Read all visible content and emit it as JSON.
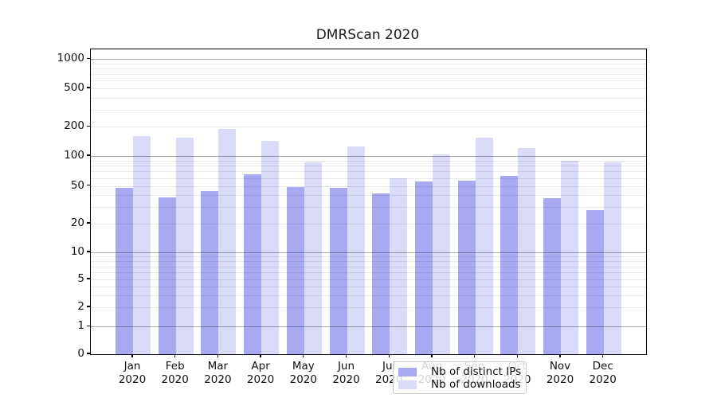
{
  "title": "DMRScan 2020",
  "chart_data": {
    "type": "bar",
    "title": "DMRScan 2020",
    "yscale": "symlog",
    "ylim": [
      0,
      1260
    ],
    "y_ticks": [
      0,
      1,
      2,
      5,
      10,
      20,
      50,
      100,
      200,
      500,
      1000
    ],
    "grid": true,
    "grid_minor": true,
    "legend_position": "lower-center",
    "categories": [
      {
        "month": "Jan",
        "year": "2020"
      },
      {
        "month": "Feb",
        "year": "2020"
      },
      {
        "month": "Mar",
        "year": "2020"
      },
      {
        "month": "Apr",
        "year": "2020"
      },
      {
        "month": "May",
        "year": "2020"
      },
      {
        "month": "Jun",
        "year": "2020"
      },
      {
        "month": "Jul",
        "year": "2020"
      },
      {
        "month": "Aug",
        "year": "2020"
      },
      {
        "month": "Sep",
        "year": "2020"
      },
      {
        "month": "Oct",
        "year": "2020"
      },
      {
        "month": "Nov",
        "year": "2020"
      },
      {
        "month": "Dec",
        "year": "2020"
      }
    ],
    "series": [
      {
        "name": "Nb of distinct IPs",
        "color": "#a9a9f2",
        "values": [
          48,
          38,
          44,
          65,
          49,
          48,
          42,
          56,
          57,
          63,
          37,
          28
        ]
      },
      {
        "name": "Nb of downloads",
        "color": "#dadaf9",
        "values": [
          160,
          155,
          190,
          143,
          86,
          125,
          60,
          104,
          154,
          121,
          89,
          87
        ]
      }
    ]
  }
}
